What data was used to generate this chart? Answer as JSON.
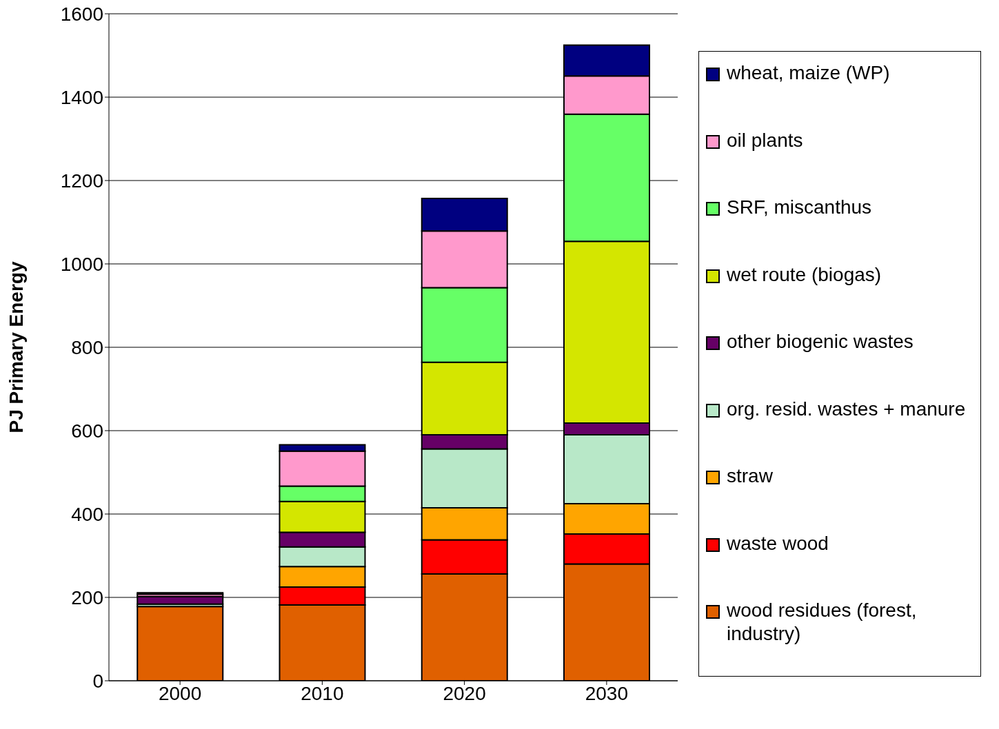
{
  "chart_data": {
    "type": "bar",
    "stacked": true,
    "ylabel": "PJ Primary Energy",
    "categories": [
      "2000",
      "2010",
      "2020",
      "2030"
    ],
    "series": [
      {
        "name": "wood residues (forest, industry)",
        "color": "#e06000",
        "values": [
          178,
          182,
          256,
          280
        ]
      },
      {
        "name": "waste wood",
        "color": "#ff0000",
        "values": [
          0,
          43,
          82,
          72
        ]
      },
      {
        "name": "straw",
        "color": "#ffa500",
        "values": [
          0,
          49,
          77,
          73
        ]
      },
      {
        "name": "org. resid. wastes + manure",
        "color": "#b8e8c8",
        "values": [
          6,
          47,
          141,
          165
        ]
      },
      {
        "name": "other biogenic wastes",
        "color": "#660066",
        "values": [
          18,
          35,
          34,
          28
        ]
      },
      {
        "name": "wet route (biogas)",
        "color": "#d4e600",
        "values": [
          0,
          74,
          174,
          436
        ]
      },
      {
        "name": "SRF, miscanthus",
        "color": "#66ff66",
        "values": [
          0,
          37,
          179,
          305
        ]
      },
      {
        "name": "oil plants",
        "color": "#ff99cc",
        "values": [
          6,
          84,
          136,
          92
        ]
      },
      {
        "name": "wheat, maize (WP)",
        "color": "#000080",
        "values": [
          3,
          15,
          78,
          74
        ]
      }
    ],
    "ylim": [
      0,
      1600
    ],
    "yticks": [
      0,
      200,
      400,
      600,
      800,
      1000,
      1200,
      1400,
      1600
    ],
    "grid": "y",
    "legend": "right"
  }
}
